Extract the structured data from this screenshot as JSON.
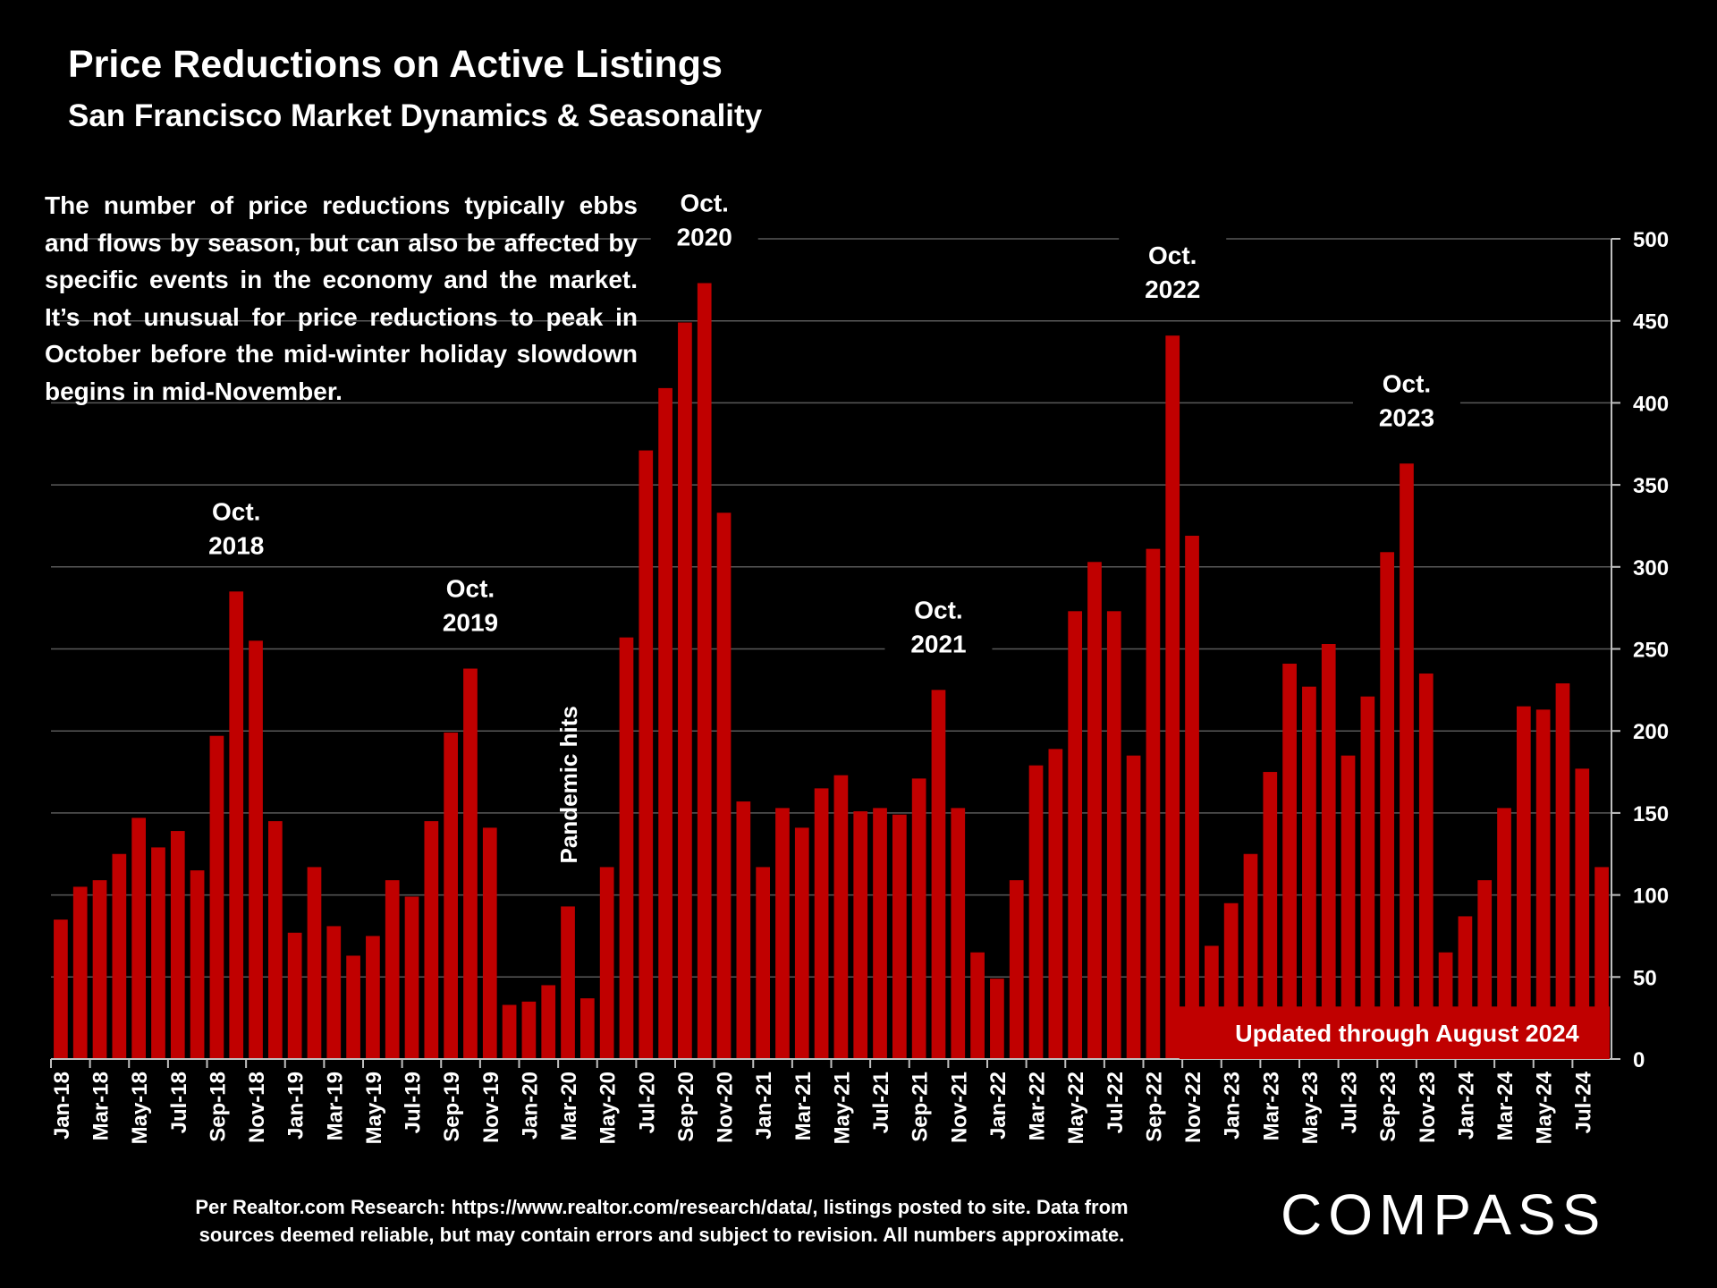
{
  "page": {
    "title": "Price Reductions on Active Listings",
    "subtitle": "San Francisco Market Dynamics & Seasonality",
    "description": "The number of price reductions typically ebbs and flows by season, but can also be affected by specific events in the economy and the market. It’s not unusual for price reductions to peak in October before the mid-winter holiday slowdown begins in mid-November.",
    "footer_line1": "Per Realtor.com Research:  https://www.realtor.com/research/data/, listings posted to site. Data from",
    "footer_line2": "sources deemed reliable, but may contain errors and subject to revision. All numbers approximate.",
    "logo": "COMPASS",
    "update_banner": "Updated through August 2024"
  },
  "colors": {
    "background": "#000000",
    "bar": "#c00000",
    "text": "#ffffff",
    "grid": "#595959"
  },
  "chart_data": {
    "type": "bar",
    "title": "Price Reductions on Active Listings",
    "subtitle": "San Francisco Market Dynamics & Seasonality",
    "y_axis_side": "right",
    "ylim": [
      0,
      500
    ],
    "yticks": [
      0,
      50,
      100,
      150,
      200,
      250,
      300,
      350,
      400,
      450,
      500
    ],
    "grid": true,
    "categories": [
      "Jan-18",
      "Feb-18",
      "Mar-18",
      "Apr-18",
      "May-18",
      "Jun-18",
      "Jul-18",
      "Aug-18",
      "Sep-18",
      "Oct-18",
      "Nov-18",
      "Dec-18",
      "Jan-19",
      "Feb-19",
      "Mar-19",
      "Apr-19",
      "May-19",
      "Jun-19",
      "Jul-19",
      "Aug-19",
      "Sep-19",
      "Oct-19",
      "Nov-19",
      "Dec-19",
      "Jan-20",
      "Feb-20",
      "Mar-20",
      "Apr-20",
      "May-20",
      "Jun-20",
      "Jul-20",
      "Aug-20",
      "Sep-20",
      "Oct-20",
      "Nov-20",
      "Dec-20",
      "Jan-21",
      "Feb-21",
      "Mar-21",
      "Apr-21",
      "May-21",
      "Jun-21",
      "Jul-21",
      "Aug-21",
      "Sep-21",
      "Oct-21",
      "Nov-21",
      "Dec-21",
      "Jan-22",
      "Feb-22",
      "Mar-22",
      "Apr-22",
      "May-22",
      "Jun-22",
      "Jul-22",
      "Aug-22",
      "Sep-22",
      "Oct-22",
      "Nov-22",
      "Dec-22",
      "Jan-23",
      "Feb-23",
      "Mar-23",
      "Apr-23",
      "May-23",
      "Jun-23",
      "Jul-23",
      "Aug-23",
      "Sep-23",
      "Oct-23",
      "Nov-23",
      "Dec-23",
      "Jan-24",
      "Feb-24",
      "Mar-24",
      "Apr-24",
      "May-24",
      "Jun-24",
      "Jul-24",
      "Aug-24"
    ],
    "tick_labels": [
      "Jan-18",
      "Mar-18",
      "May-18",
      "Jul-18",
      "Sep-18",
      "Nov-18",
      "Jan-19",
      "Mar-19",
      "May-19",
      "Jul-19",
      "Sep-19",
      "Nov-19",
      "Jan-20",
      "Mar-20",
      "May-20",
      "Jul-20",
      "Sep-20",
      "Nov-20",
      "Jan-21",
      "Mar-21",
      "May-21",
      "Jul-21",
      "Sep-21",
      "Nov-21",
      "Jan-22",
      "Mar-22",
      "May-22",
      "Jul-22",
      "Sep-22",
      "Nov-22",
      "Jan-23",
      "Mar-23",
      "May-23",
      "Jul-23",
      "Sep-23",
      "Nov-23",
      "Jan-24",
      "Mar-24",
      "May-24",
      "Jul-24"
    ],
    "values": [
      85,
      105,
      109,
      125,
      147,
      129,
      139,
      115,
      197,
      285,
      255,
      145,
      77,
      117,
      81,
      63,
      75,
      109,
      99,
      145,
      199,
      238,
      141,
      33,
      35,
      45,
      93,
      37,
      117,
      257,
      371,
      409,
      449,
      473,
      333,
      157,
      117,
      153,
      141,
      165,
      173,
      151,
      153,
      149,
      171,
      225,
      153,
      65,
      49,
      109,
      179,
      189,
      273,
      303,
      273,
      185,
      311,
      441,
      319,
      69,
      95,
      125,
      175,
      241,
      227,
      253,
      185,
      221,
      309,
      363,
      235,
      65,
      87,
      109,
      153,
      215,
      213,
      229,
      177,
      117
    ],
    "annotations": [
      {
        "category": "Oct-18",
        "line1": "Oct.",
        "line2": "2018"
      },
      {
        "category": "Oct-19",
        "line1": "Oct.",
        "line2": "2019"
      },
      {
        "category": "Oct-20",
        "line1": "Oct.",
        "line2": "2020"
      },
      {
        "category": "Oct-21",
        "line1": "Oct.",
        "line2": "2021"
      },
      {
        "category": "Oct-22",
        "line1": "Oct.",
        "line2": "2022"
      },
      {
        "category": "Oct-23",
        "line1": "Oct.",
        "line2": "2023"
      }
    ],
    "pandemic_label": "Pandemic hits"
  }
}
